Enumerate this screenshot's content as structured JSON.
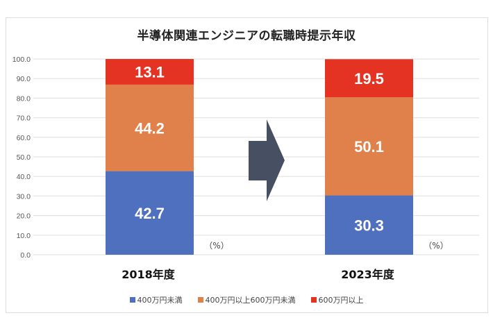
{
  "chart_data": {
    "type": "bar",
    "stacked": true,
    "title": "半導体関連エンジニアの転職時提示年収",
    "categories": [
      "2018年度",
      "2023年度"
    ],
    "series": [
      {
        "name": "400万円未満",
        "values": [
          42.7,
          30.3
        ],
        "color": "#4f6fbf"
      },
      {
        "name": "400万円以上600万円未満",
        "values": [
          44.2,
          50.1
        ],
        "color": "#e0804a"
      },
      {
        "name": "600万円以上",
        "values": [
          13.1,
          19.5
        ],
        "color": "#e53323"
      }
    ],
    "ylim": [
      0,
      100
    ],
    "yticks": [
      "0.0",
      "10.0",
      "20.0",
      "30.0",
      "40.0",
      "50.0",
      "60.0",
      "70.0",
      "80.0",
      "90.0",
      "100.0"
    ],
    "unit_label": "（%）",
    "xlabel": "",
    "ylabel": "",
    "grid": true,
    "legend_position": "bottom",
    "annotation": "arrow-right between categories",
    "arrow_color": "#475063"
  }
}
